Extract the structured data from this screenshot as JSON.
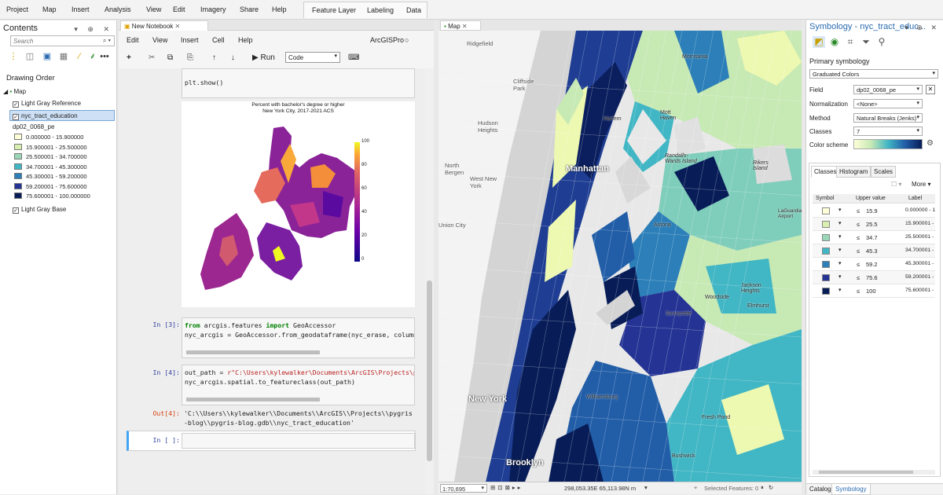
{
  "ribbon": {
    "tabs": [
      "Project",
      "Map",
      "Insert",
      "Analysis",
      "View",
      "Edit",
      "Imagery",
      "Share",
      "Help"
    ],
    "context_tabs": [
      "Feature Layer",
      "Labeling",
      "Data"
    ]
  },
  "contents": {
    "title": "Contents",
    "search_placeholder": "Search",
    "section": "Drawing Order",
    "map_item": "Map",
    "layers": [
      "Light Gray Reference",
      "nyc_tract_education"
    ],
    "field": "dp02_0068_pe",
    "legend": [
      {
        "label": "0.000000 - 15.900000",
        "color": "#fefed8"
      },
      {
        "label": "15.900001 - 25.500000",
        "color": "#d9efb1"
      },
      {
        "label": "25.500001 - 34.700000",
        "color": "#99d7b8"
      },
      {
        "label": "34.700001 - 45.300000",
        "color": "#41b6c4"
      },
      {
        "label": "45.300001 - 59.200000",
        "color": "#2c7fb8"
      },
      {
        "label": "59.200001 - 75.600000",
        "color": "#253494"
      },
      {
        "label": "75.600001 - 100.000000",
        "color": "#081d58"
      }
    ],
    "base": "Light Gray Base"
  },
  "notebook": {
    "tab": "New Notebook",
    "menu": [
      "Edit",
      "View",
      "Insert",
      "Cell",
      "Help"
    ],
    "kernel": "ArcGISPro",
    "run_label": "Run",
    "cell_type": "Code",
    "cell_prev": "plt.show()",
    "plot_title1": "Percent with bachelor's degree or higher",
    "plot_title2": "New York City, 2017-2021 ACS",
    "colorbar_ticks": [
      "100",
      "80",
      "60",
      "40",
      "20",
      "0"
    ],
    "in3_prompt": "In [3]:",
    "in3_line1_kw1": "from",
    "in3_line1_mod": " arcgis.features ",
    "in3_line1_kw2": "import",
    "in3_line1_name": " GeoAccessor",
    "in3_line2": "nyc_arcgis = GeoAccessor.from_geodataframe(nyc_erase, column_",
    "in4_prompt": "In [4]:",
    "in4_line1_a": "out_path = ",
    "in4_line1_b": "r\"C:\\Users\\kylewalker\\Documents\\ArcGIS\\Projects\\pyg",
    "in4_line2": "nyc_arcgis.spatial.to_featureclass(out_path)",
    "out4_prompt": "Out[4]:",
    "out4_line1": "'C:\\\\Users\\\\kylewalker\\\\Documents\\\\ArcGIS\\\\Projects\\\\pygris",
    "out4_line2": "-blog\\\\pygris-blog.gdb\\\\nyc_tract_education'",
    "empty_prompt": "In [ ]:"
  },
  "map": {
    "tab": "Map",
    "labels": [
      "Ridgefield",
      "Cliffside Park",
      "Hudson Heights",
      "North Bergen",
      "West New York",
      "Manhattan",
      "Randalls-Wards Island",
      "Rikers Island",
      "Astoria",
      "LaGuardia Airport",
      "Jackson Heights",
      "Elmhurst",
      "Woodside",
      "Sunnyside",
      "New York",
      "Williamsburg",
      "Brooklyn",
      "Bushwick",
      "Fresh Pond",
      "Morrisania",
      "Mott Haven",
      "Harlem",
      "Union City"
    ],
    "scale": "1:70,695",
    "coords": "298,053.35E 65,113.98N m",
    "selected": "Selected Features: 0"
  },
  "symbology": {
    "title": "Symbology - nyc_tract_educ...",
    "primary": "Primary symbology",
    "method_type": "Graduated Colors",
    "field_label": "Field",
    "field_value": "dp02_0068_pe",
    "norm_label": "Normalization",
    "norm_value": "<None>",
    "method_label": "Method",
    "method_value": "Natural Breaks (Jenks)",
    "classes_label": "Classes",
    "classes_value": "7",
    "scheme_label": "Color scheme",
    "tabs": [
      "Classes",
      "Histogram",
      "Scales"
    ],
    "more": "More",
    "col_symbol": "Symbol",
    "col_upper": "Upper value",
    "col_label": "Label",
    "rows": [
      {
        "upper": "15.9",
        "label": "0.000000 - 1",
        "color": "#fefed8"
      },
      {
        "upper": "25.5",
        "label": "15.900001 -",
        "color": "#d9efb1"
      },
      {
        "upper": "34.7",
        "label": "25.500001 -",
        "color": "#99d7b8"
      },
      {
        "upper": "45.3",
        "label": "34.700001 -",
        "color": "#41b6c4"
      },
      {
        "upper": "59.2",
        "label": "45.300001 -",
        "color": "#2c7fb8"
      },
      {
        "upper": "75.6",
        "label": "59.200001 -",
        "color": "#253494"
      },
      {
        "upper": "100",
        "label": "75.600001 -",
        "color": "#081d58"
      }
    ],
    "le": "≤",
    "bottom_tabs": [
      "Catalog",
      "Symbology"
    ]
  }
}
